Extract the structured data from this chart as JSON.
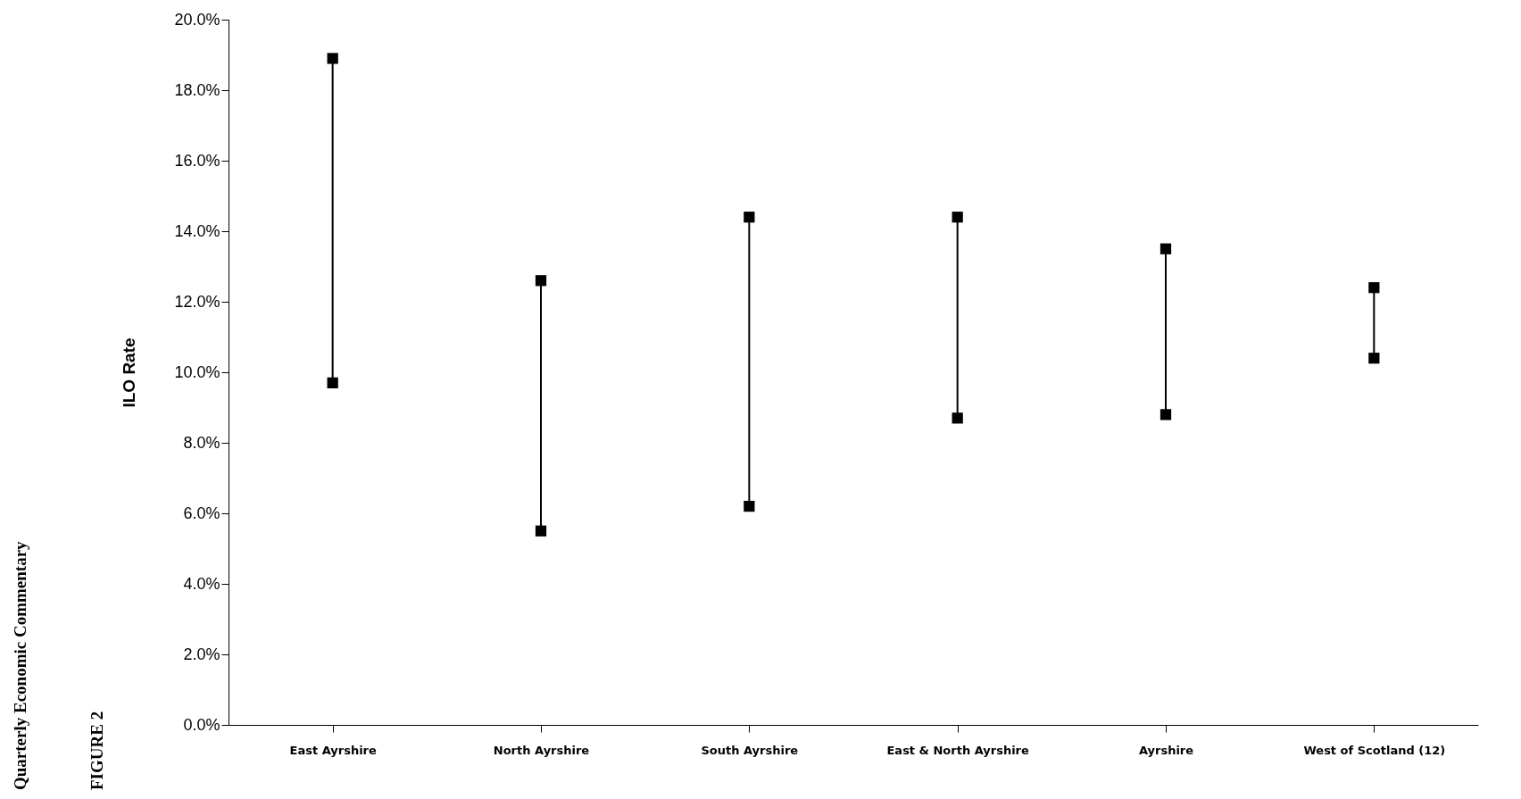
{
  "chart_data": {
    "type": "line",
    "ylabel": "ILO Rate",
    "annotations": [
      "FIGURE 2",
      "Quarterly Economic Commentary"
    ],
    "categories": [
      "East Ayrshire",
      "North Ayrshire",
      "South Ayrshire",
      "East & North Ayrshire",
      "Ayrshire",
      "West of Scotland (12)"
    ],
    "series": [
      {
        "color": "#000000",
        "x": [
          "East Ayrshire",
          "East Ayrshire"
        ],
        "values": [
          9.7,
          18.9
        ]
      },
      {
        "color": "#000000",
        "x": [
          "North Ayrshire",
          "North Ayrshire"
        ],
        "values": [
          5.5,
          12.6
        ]
      },
      {
        "color": "#000000",
        "x": [
          "South Ayrshire",
          "South Ayrshire"
        ],
        "values": [
          6.2,
          14.4
        ]
      },
      {
        "color": "#000000",
        "x": [
          "East & North Ayrshire",
          "East & North Ayrshire"
        ],
        "values": [
          8.7,
          14.4
        ]
      },
      {
        "color": "#000000",
        "x": [
          "Ayrshire",
          "Ayrshire"
        ],
        "values": [
          8.8,
          13.5
        ]
      },
      {
        "color": "#000000",
        "x": [
          "West of Scotland (12)",
          "West of Scotland (12)"
        ],
        "values": [
          10.4,
          12.4
        ]
      }
    ],
    "marker": "square",
    "grid": false,
    "ylim": [
      0,
      20
    ],
    "yticks": [
      {
        "value": 0,
        "label": "0.0%"
      },
      {
        "value": 2,
        "label": "2.0%"
      },
      {
        "value": 4,
        "label": "4.0%"
      },
      {
        "value": 6,
        "label": "6.0%"
      },
      {
        "value": 8,
        "label": "8.0%"
      },
      {
        "value": 10,
        "label": "10.0%"
      },
      {
        "value": 12,
        "label": "12.0%"
      },
      {
        "value": 14,
        "label": "14.0%"
      },
      {
        "value": 16,
        "label": "16.0%"
      },
      {
        "value": 18,
        "label": "18.0%"
      },
      {
        "value": 20,
        "label": "20.0%"
      }
    ]
  }
}
